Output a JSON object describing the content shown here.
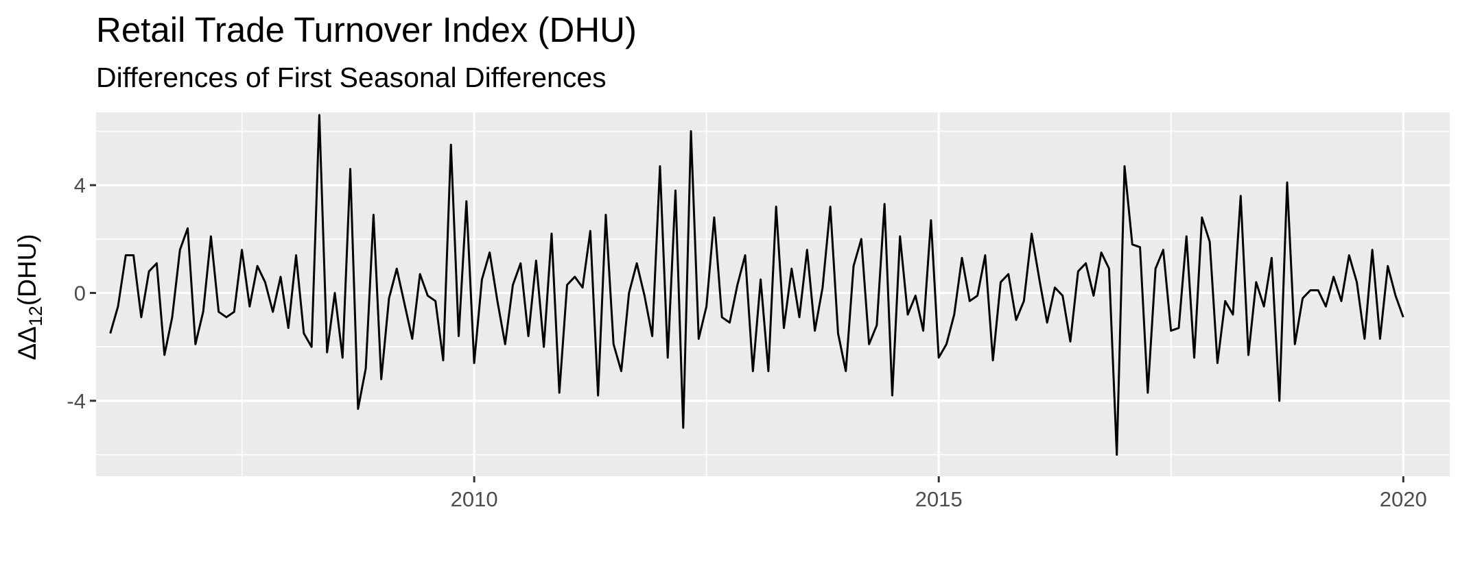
{
  "chart_data": {
    "type": "line",
    "title": "Retail Trade Turnover Index (DHU)",
    "subtitle": "Differences of First Seasonal Differences",
    "xlabel": "",
    "ylabel": {
      "prefix": "ΔΔ",
      "subscript": "12",
      "suffix": "(DHU)"
    },
    "xlim": [
      2005.93,
      2020.5
    ],
    "ylim": [
      -6.8,
      6.7
    ],
    "x_ticks": [
      {
        "value": 2010,
        "label": "2010"
      },
      {
        "value": 2015,
        "label": "2015"
      },
      {
        "value": 2020,
        "label": "2020"
      }
    ],
    "y_ticks": [
      {
        "value": 4,
        "label": "4"
      },
      {
        "value": 0,
        "label": "0"
      },
      {
        "value": -4,
        "label": "-4"
      }
    ],
    "grid": true,
    "legend": "none",
    "colors": {
      "panel": "#ebebeb",
      "grid": "#ffffff",
      "line": "#000000",
      "axis_text": "#4d4d4d",
      "tick": "#333333"
    },
    "series": [
      {
        "x_start": 2006.083,
        "x_step": 0.083333,
        "values": [
          -1.5,
          -0.5,
          1.4,
          1.4,
          -0.9,
          0.8,
          1.1,
          -2.3,
          -0.9,
          1.6,
          2.4,
          -1.9,
          -0.7,
          2.1,
          -0.7,
          -0.9,
          -0.7,
          1.6,
          -0.5,
          1.0,
          0.4,
          -0.7,
          0.6,
          -1.3,
          1.4,
          -1.5,
          -2.0,
          6.6,
          -2.2,
          0.0,
          -2.4,
          4.6,
          -4.3,
          -2.8,
          2.9,
          -3.2,
          -0.2,
          0.9,
          -0.4,
          -1.7,
          0.7,
          -0.1,
          -0.3,
          -2.5,
          5.5,
          -1.6,
          3.4,
          -2.6,
          0.5,
          1.5,
          -0.3,
          -1.9,
          0.3,
          1.1,
          -1.6,
          1.2,
          -2.0,
          2.2,
          -3.7,
          0.3,
          0.6,
          0.2,
          2.3,
          -3.8,
          2.9,
          -1.9,
          -2.9,
          0.0,
          1.1,
          -0.1,
          -1.6,
          4.7,
          -2.4,
          3.8,
          -5.0,
          6.0,
          -1.7,
          -0.5,
          2.8,
          -0.9,
          -1.1,
          0.3,
          1.4,
          -2.9,
          0.5,
          -2.9,
          3.2,
          -1.3,
          0.9,
          -0.9,
          1.6,
          -1.4,
          0.2,
          3.2,
          -1.5,
          -2.9,
          1.0,
          2.0,
          -1.9,
          -1.2,
          3.3,
          -3.8,
          2.1,
          -0.8,
          -0.1,
          -1.4,
          2.7,
          -2.4,
          -1.9,
          -0.8,
          1.3,
          -0.3,
          -0.1,
          1.4,
          -2.5,
          0.4,
          0.7,
          -1.0,
          -0.3,
          2.2,
          0.5,
          -1.1,
          0.2,
          -0.1,
          -1.8,
          0.8,
          1.1,
          -0.1,
          1.5,
          0.9,
          -6.0,
          4.7,
          1.8,
          1.7,
          -3.7,
          0.9,
          1.6,
          -1.4,
          -1.3,
          2.1,
          -2.4,
          2.8,
          1.9,
          -2.6,
          -0.3,
          -0.8,
          3.6,
          -2.3,
          0.4,
          -0.5,
          1.3,
          -4.0,
          4.1,
          -1.9,
          -0.2,
          0.1,
          0.1,
          -0.5,
          0.6,
          -0.3,
          1.4,
          0.4,
          -1.7,
          1.6,
          -1.7,
          1.0,
          -0.1,
          -0.9
        ]
      }
    ]
  }
}
